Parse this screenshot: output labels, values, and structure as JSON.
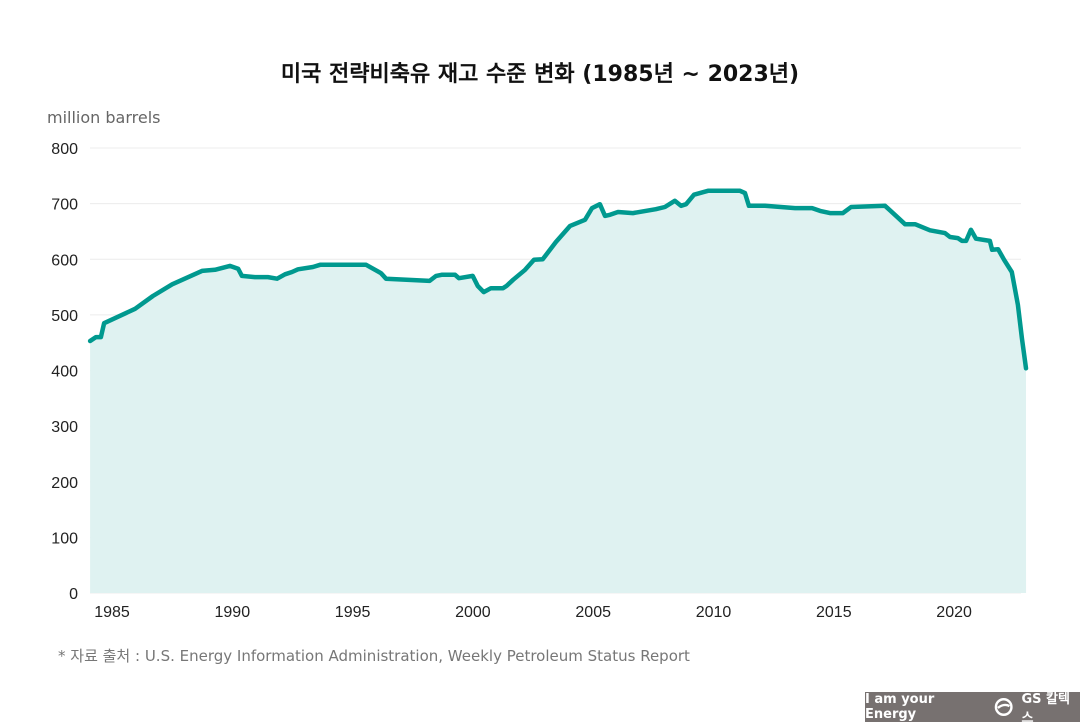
{
  "title": "미국 전략비축유 재고 수준 변화 (1985년 ~ 2023년)",
  "source": "* 자료 출처 : U.S. Energy Information Administration, Weekly Petroleum Status Report",
  "logo": {
    "slogan": "I am your Energy",
    "brand": "GS 칼텍스"
  },
  "chart_data": {
    "type": "area",
    "title": "미국 전략비축유 재고 수준 변화 (1985년 ~ 2023년)",
    "ylabel": "million barrels",
    "xlabel": "",
    "xlim": [
      1984.1,
      2023.0
    ],
    "ylim": [
      0,
      800
    ],
    "xticks": [
      1985,
      1990,
      1995,
      2000,
      2005,
      2010,
      2015,
      2020
    ],
    "yticks": [
      0,
      100,
      200,
      300,
      400,
      500,
      600,
      700,
      800
    ],
    "grid": "horizontal",
    "colors": {
      "line": "#00998f",
      "fill": "#dff2f1",
      "grid": "#ececec"
    },
    "x": [
      1984.09,
      1984.33,
      1984.54,
      1984.67,
      1985.96,
      1986.7,
      1987.5,
      1988.74,
      1989.28,
      1989.9,
      1990.24,
      1990.4,
      1990.94,
      1991.48,
      1991.86,
      1992.19,
      1992.48,
      1992.73,
      1993.35,
      1993.65,
      1995.56,
      1996.18,
      1996.39,
      1998.2,
      1998.47,
      1998.7,
      1999.26,
      1999.42,
      1999.99,
      2000.2,
      2000.45,
      2000.75,
      2001.25,
      2001.4,
      2001.67,
      2002.17,
      2002.54,
      2002.9,
      2003.45,
      2004.04,
      2004.66,
      2004.95,
      2005.28,
      2005.49,
      2005.7,
      2006.03,
      2006.65,
      2007.6,
      2007.98,
      2008.39,
      2008.65,
      2008.86,
      2009.19,
      2009.77,
      2011.1,
      2011.31,
      2011.47,
      2012.14,
      2013.39,
      2014.1,
      2014.43,
      2014.84,
      2015.38,
      2015.72,
      2017.13,
      2017.59,
      2017.96,
      2018.38,
      2019.0,
      2019.62,
      2019.83,
      2020.16,
      2020.33,
      2020.5,
      2020.7,
      2020.91,
      2021.49,
      2021.58,
      2021.83,
      2022.08,
      2022.4,
      2022.65,
      2022.82,
      2022.99
    ],
    "values": [
      453,
      460,
      460,
      485,
      511,
      534,
      555,
      579,
      581,
      588,
      583,
      570,
      568,
      568,
      565,
      573,
      577,
      582,
      586,
      590,
      590,
      575,
      565,
      561,
      570,
      572,
      572,
      566,
      570,
      552,
      541,
      548,
      548,
      552,
      563,
      581,
      599,
      600,
      631,
      660,
      671,
      692,
      699,
      678,
      680,
      685,
      683,
      690,
      694,
      705,
      696,
      699,
      716,
      723,
      723,
      719,
      696,
      696,
      692,
      692,
      687,
      683,
      683,
      694,
      696,
      678,
      663,
      663,
      652,
      647,
      640,
      638,
      633,
      633,
      653,
      637,
      633,
      617,
      618,
      599,
      577,
      518,
      458,
      404
    ]
  }
}
